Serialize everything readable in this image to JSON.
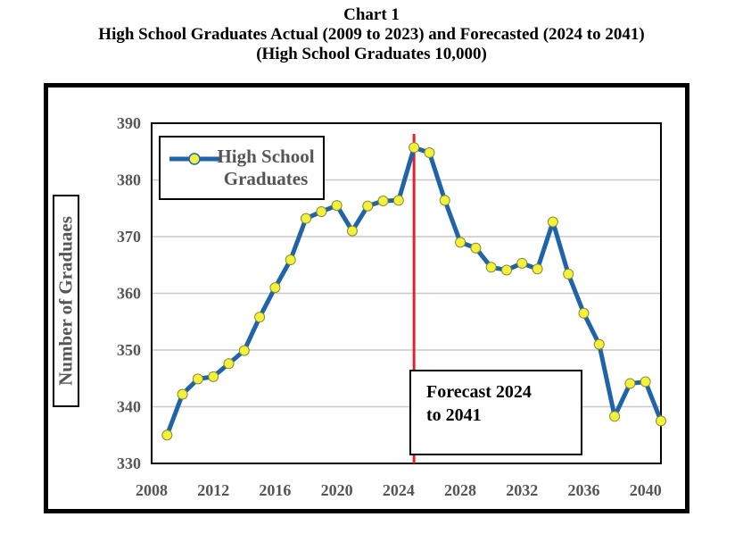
{
  "title": {
    "line1": "Chart 1",
    "line2": "High School Graduates Actual (2009 to 2023) and Forecasted (2024 to 2041)",
    "line3": "(High School Graduates 10,000)"
  },
  "chart_data": {
    "type": "line",
    "ylabel": "Number of Graduaes",
    "xlabel": "",
    "xlim": [
      2008,
      2041
    ],
    "ylim": [
      330,
      390
    ],
    "x_ticks": [
      "2008",
      "2012",
      "2016",
      "2020",
      "2024",
      "2028",
      "2032",
      "2036",
      "2040"
    ],
    "y_ticks": [
      "330",
      "340",
      "350",
      "360",
      "370",
      "380",
      "390"
    ],
    "grid": "horizontal",
    "legend_position": "top-left",
    "series": [
      {
        "name": "High School Graduates",
        "color": "#1f63a8",
        "marker_color": "#f2f23c",
        "x": [
          2009,
          2010,
          2011,
          2012,
          2013,
          2014,
          2015,
          2016,
          2017,
          2018,
          2019,
          2020,
          2021,
          2022,
          2023,
          2024,
          2025,
          2026,
          2027,
          2028,
          2029,
          2030,
          2031,
          2032,
          2033,
          2034,
          2035,
          2036,
          2037,
          2038,
          2039,
          2040,
          2041
        ],
        "y": [
          335.0,
          342.2,
          344.9,
          345.3,
          347.6,
          349.9,
          355.8,
          361.0,
          365.9,
          373.2,
          374.4,
          375.5,
          371.0,
          375.4,
          376.3,
          376.4,
          385.7,
          384.8,
          376.4,
          369.0,
          368.0,
          364.6,
          364.1,
          365.3,
          364.3,
          372.6,
          363.4,
          356.5,
          351.0,
          338.3,
          344.1,
          344.4,
          337.5
        ]
      }
    ],
    "forecast_line": {
      "x": 2025,
      "color": "#e8202a"
    },
    "annotation": {
      "line1": "Forecast 2024",
      "line2": "to 2041"
    }
  }
}
